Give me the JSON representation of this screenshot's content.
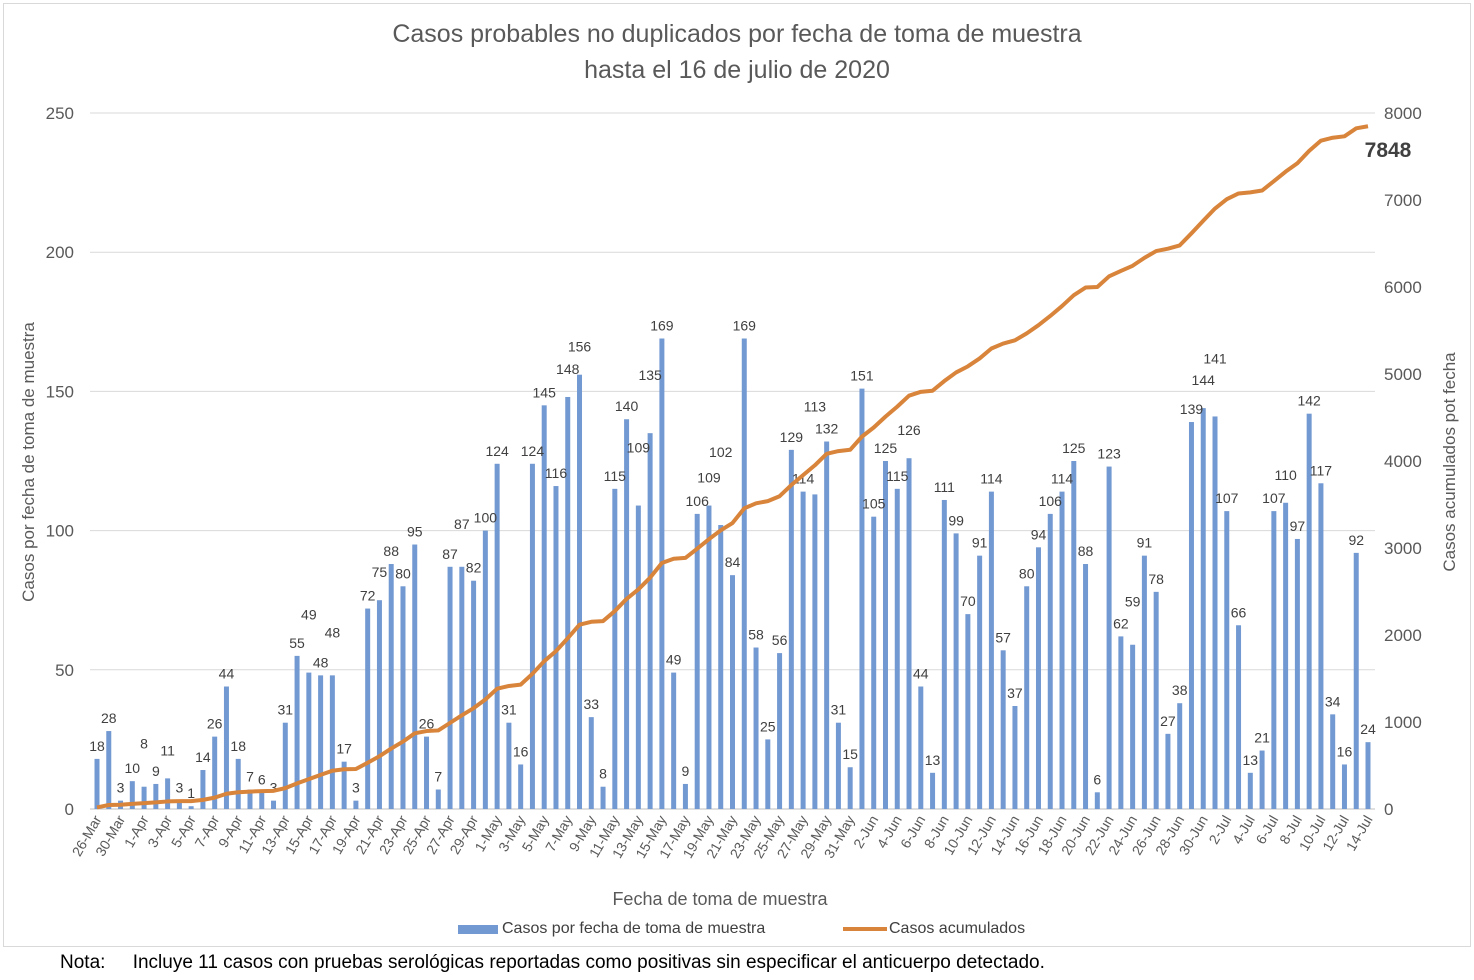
{
  "chart_data": {
    "type": "bar+line",
    "title": "Casos probables no duplicados por fecha de toma de muestra",
    "subtitle": "hasta el 16 de julio de 2020",
    "xlabel": "Fecha de toma de muestra",
    "ylabel": "Casos por fecha de toma de muestra",
    "y2label": "Casos acumulados pot fecha",
    "ylim": [
      0,
      250
    ],
    "y2lim": [
      0,
      8000
    ],
    "yticks": [
      0,
      50,
      100,
      150,
      200,
      250
    ],
    "y2ticks": [
      0,
      1000,
      2000,
      3000,
      4000,
      5000,
      6000,
      7000,
      8000
    ],
    "grid": true,
    "legend_position": "bottom",
    "categories": [
      "26-Mar",
      "29-Mar",
      "30-Mar",
      "31-Mar",
      "1-Apr",
      "2-Apr",
      "3-Apr",
      "4-Apr",
      "5-Apr",
      "6-Apr",
      "7-Apr",
      "8-Apr",
      "9-Apr",
      "10-Apr",
      "11-Apr",
      "12-Apr",
      "13-Apr",
      "14-Apr",
      "15-Apr",
      "16-Apr",
      "17-Apr",
      "18-Apr",
      "19-Apr",
      "20-Apr",
      "21-Apr",
      "22-Apr",
      "23-Apr",
      "24-Apr",
      "25-Apr",
      "26-Apr",
      "27-Apr",
      "28-Apr",
      "29-Apr",
      "30-Apr",
      "1-May",
      "2-May",
      "3-May",
      "4-May",
      "5-May",
      "6-May",
      "7-May",
      "8-May",
      "9-May",
      "10-May",
      "11-May",
      "12-May",
      "13-May",
      "14-May",
      "15-May",
      "16-May",
      "17-May",
      "18-May",
      "19-May",
      "20-May",
      "21-May",
      "22-May",
      "23-May",
      "24-May",
      "25-May",
      "26-May",
      "27-May",
      "28-May",
      "29-May",
      "30-May",
      "31-May",
      "1-Jun",
      "2-Jun",
      "3-Jun",
      "4-Jun",
      "5-Jun",
      "6-Jun",
      "7-Jun",
      "8-Jun",
      "9-Jun",
      "10-Jun",
      "11-Jun",
      "12-Jun",
      "13-Jun",
      "14-Jun",
      "15-Jun",
      "16-Jun",
      "17-Jun",
      "18-Jun",
      "19-Jun",
      "20-Jun",
      "21-Jun",
      "22-Jun",
      "23-Jun",
      "24-Jun",
      "25-Jun",
      "26-Jun",
      "27-Jun",
      "28-Jun",
      "29-Jun",
      "30-Jun",
      "1-Jul",
      "2-Jul",
      "3-Jul",
      "4-Jul",
      "5-Jul",
      "6-Jul",
      "7-Jul",
      "8-Jul",
      "9-Jul",
      "10-Jul",
      "11-Jul",
      "12-Jul",
      "13-Jul",
      "14-Jul"
    ],
    "tick_labels": [
      "26-Mar",
      "30-Mar",
      "1-Apr",
      "3-Apr",
      "5-Apr",
      "7-Apr",
      "9-Apr",
      "11-Apr",
      "13-Apr",
      "15-Apr",
      "17-Apr",
      "19-Apr",
      "21-Apr",
      "23-Apr",
      "25-Apr",
      "27-Apr",
      "29-Apr",
      "1-May",
      "3-May",
      "5-May",
      "7-May",
      "9-May",
      "11-May",
      "13-May",
      "15-May",
      "17-May",
      "19-May",
      "21-May",
      "23-May",
      "25-May",
      "27-May",
      "29-May",
      "31-May",
      "2-Jun",
      "4-Jun",
      "6-Jun",
      "8-Jun",
      "10-Jun",
      "12-Jun",
      "14-Jun",
      "16-Jun",
      "18-Jun",
      "20-Jun",
      "22-Jun",
      "24-Jun",
      "26-Jun",
      "28-Jun",
      "30-Jun",
      "2-Jul",
      "4-Jul",
      "6-Jul",
      "8-Jul",
      "10-Jul",
      "12-Jul",
      "14-Jul"
    ],
    "series": [
      {
        "name": "Casos por fecha de toma de muestra",
        "type": "bar",
        "axis": "left",
        "color": "#7399d2",
        "values": [
          18,
          28,
          3,
          10,
          8,
          9,
          11,
          3,
          1,
          14,
          26,
          44,
          18,
          7,
          6,
          3,
          31,
          55,
          49,
          48,
          48,
          17,
          3,
          72,
          75,
          88,
          80,
          95,
          26,
          7,
          87,
          87,
          82,
          100,
          124,
          31,
          16,
          124,
          145,
          116,
          148,
          156,
          33,
          8,
          115,
          140,
          109,
          135,
          169,
          49,
          9,
          106,
          109,
          102,
          84,
          169,
          58,
          25,
          56,
          129,
          114,
          113,
          132,
          31,
          15,
          151,
          105,
          125,
          115,
          126,
          44,
          13,
          111,
          99,
          70,
          91,
          114,
          57,
          37,
          80,
          94,
          106,
          114,
          125,
          88,
          6,
          123,
          62,
          59,
          91,
          78,
          27,
          38,
          139,
          144,
          141,
          107,
          66,
          13,
          21,
          107,
          110,
          97,
          142,
          117,
          34,
          16,
          92,
          24
        ]
      },
      {
        "name": "Casos acumulados",
        "type": "line",
        "axis": "right",
        "color": "#d9843b",
        "final_label": "7848"
      }
    ]
  },
  "note": {
    "label": "Nota:",
    "text": "Incluye 11 casos con pruebas serológicas reportadas como positivas sin especificar el anticuerpo detectado."
  }
}
